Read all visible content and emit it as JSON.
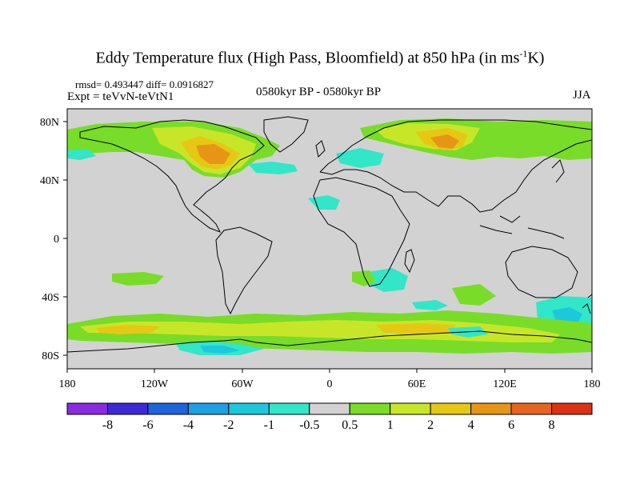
{
  "title": {
    "main": "Eddy Temperature flux (High Pass, Bloomfield) at 850 hPa (in ms",
    "sup": "-1",
    "tail": "K)"
  },
  "stats": "rmsd= 0.493447 diff= 0.0916827",
  "experiment": "Expt = teVvN-teVtN1",
  "period": "0580kyr BP - 0580kyr BP",
  "season": "JJA",
  "axes": {
    "lat_labels": [
      "80N",
      "40N",
      "0",
      "40S",
      "80S"
    ],
    "lon_labels": [
      "180",
      "120W",
      "60W",
      "0",
      "60E",
      "120E",
      "180"
    ]
  },
  "colorbar": {
    "labels": [
      "-8",
      "-6",
      "-4",
      "-2",
      "-1",
      "-0.5",
      "0.5",
      "1",
      "2",
      "4",
      "6",
      "8"
    ],
    "colors": [
      "#8a2be2",
      "#3c28d8",
      "#1e64dc",
      "#1ea0e6",
      "#1ec8dc",
      "#32e6c8",
      "#d2d2d2",
      "#78dc28",
      "#c8e628",
      "#e6c814",
      "#e69614",
      "#e6641e",
      "#dc3214"
    ]
  },
  "colors": {
    "ocean_background": "#d2d2d2",
    "coastline": "#000000"
  }
}
